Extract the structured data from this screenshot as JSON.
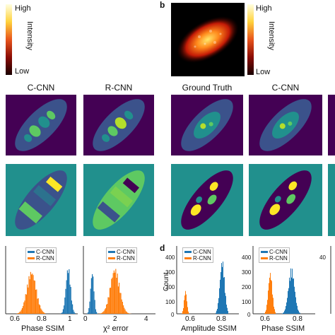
{
  "colorbar_a": {
    "high": "High",
    "low": "Low",
    "label": "Intensity"
  },
  "colorbar_b": {
    "high": "High",
    "low": "Low",
    "label": "Intensity"
  },
  "panel_b_letter": "b",
  "panel_d_letter": "d",
  "titles": {
    "c_cnn_left": "C-CNN",
    "r_cnn_left": "R-CNN",
    "ground_truth": "Ground Truth",
    "c_cnn_right": "C-CNN"
  },
  "hist1": {
    "xlabel": "Phase SSIM",
    "ticks": [
      "0.6",
      "0.8",
      "1"
    ],
    "legend": [
      "C-CNN",
      "R-CNN"
    ]
  },
  "hist2": {
    "xlabel": "χ² error",
    "ticks": [
      "0",
      "2",
      "4"
    ],
    "legend": [
      "C-CNN",
      "R-CNN"
    ]
  },
  "hist3": {
    "xlabel": "Amplitude SSIM",
    "ylabel": "Count",
    "yticks": [
      "400",
      "300",
      "200",
      "100",
      "0"
    ],
    "ticks": [
      "0.6",
      "0.8"
    ],
    "legend": [
      "C-CNN",
      "R-CNN"
    ]
  },
  "hist4": {
    "xlabel": "Phase SSIM",
    "yticks": [
      "400",
      "300",
      "200",
      "100",
      "0"
    ],
    "ticks": [
      "0.6",
      "0.8"
    ],
    "legend": [
      "C-CNN",
      "R-CNN"
    ]
  },
  "hist5": {
    "yticks": [
      "40"
    ]
  },
  "colors": {
    "c_cnn": "#1f77b4",
    "r_cnn": "#ff7f0e",
    "bg_purple": "#440154",
    "bg_teal": "#21908d"
  }
}
